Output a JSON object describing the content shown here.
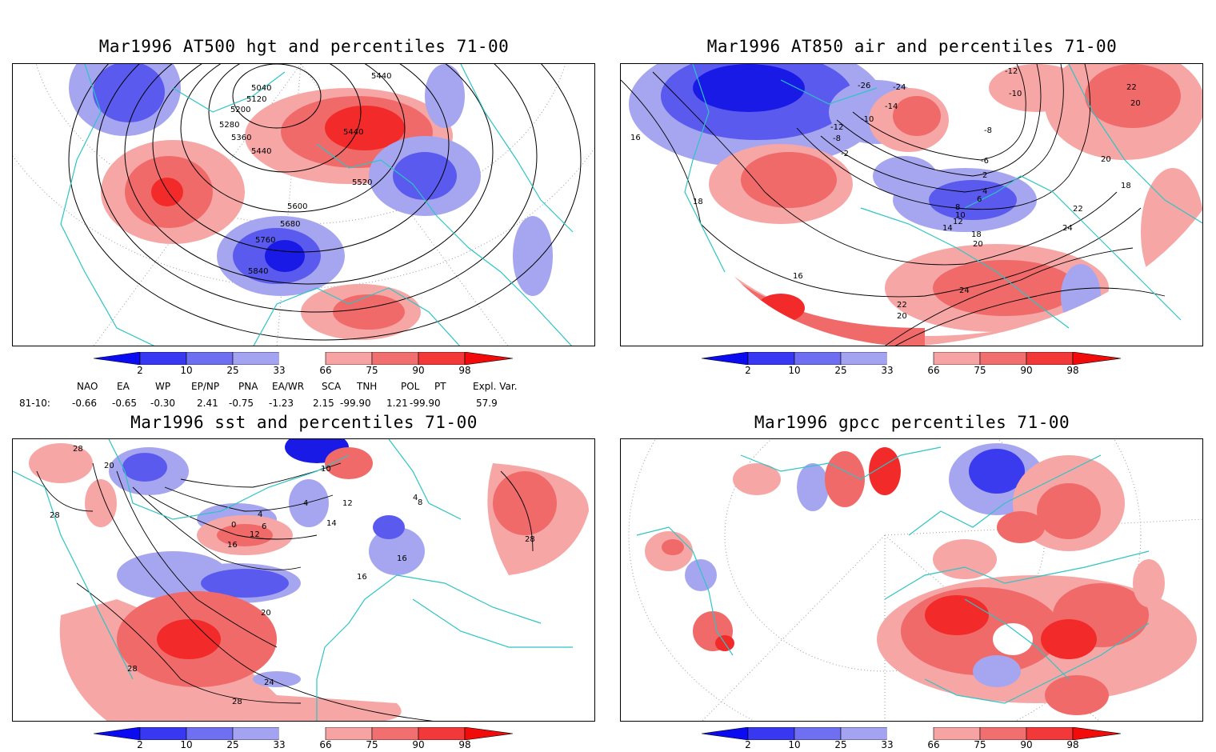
{
  "panels": [
    {
      "id": "p1",
      "title": "Mar1996 AT500 hgt and percentiles 71-00",
      "contour_labels": [
        "5040",
        "5120",
        "5200",
        "5280",
        "5360",
        "5440",
        "5440",
        "5440",
        "5520",
        "5600",
        "5680",
        "5760",
        "5840"
      ]
    },
    {
      "id": "p2",
      "title": "Mar1996 AT850 air and percentiles 71-00",
      "contour_labels": [
        "-12",
        "-10",
        "-26",
        "-24",
        "-14",
        "-10",
        "-12",
        "-8",
        "-6",
        "-8",
        "-2",
        "2",
        "4",
        "16",
        "18",
        "22",
        "20",
        "20",
        "18",
        "22",
        "6",
        "8",
        "10",
        "12",
        "14",
        "18",
        "20",
        "24",
        "16",
        "24",
        "22",
        "20"
      ]
    },
    {
      "id": "p3",
      "title": "Mar1996 sst and percentiles 71-00",
      "contour_labels": [
        "28",
        "20",
        "28",
        "10",
        "4",
        "4",
        "0",
        "6",
        "12",
        "16",
        "12",
        "14",
        "16",
        "16",
        "4",
        "8",
        "28",
        "20",
        "24",
        "28",
        "28"
      ]
    },
    {
      "id": "p4",
      "title": "Mar1996 gpcc percentiles 71-00",
      "contour_labels": []
    }
  ],
  "colorbar": {
    "labels": [
      "2",
      "10",
      "25",
      "33",
      "66",
      "75",
      "90",
      "98"
    ],
    "colors": [
      "#0b0bf2",
      "#3838f2",
      "#6f6ff2",
      "#a3a3f2",
      "#ffffff",
      "#f7a3a3",
      "#f26f6f",
      "#f23838",
      "#f20b0b"
    ]
  },
  "indices": {
    "header": [
      "NAO",
      "EA",
      "WP",
      "EP/NP",
      "PNA",
      "EA/WR",
      "SCA",
      "TNH",
      "POL",
      "PT",
      "Expl. Var."
    ],
    "row_label": "81-10:",
    "values": [
      "-0.66",
      "-0.65",
      "-0.30",
      "2.41",
      "-0.75",
      "-1.23",
      "2.15",
      "-99.90",
      "1.21",
      "-99.90",
      "57.9"
    ]
  },
  "colors": {
    "coast": "#2ec4c4",
    "blue_strong": "#1a1ae6",
    "blue_mid": "#5a5aef",
    "blue_light": "#a6a6f0",
    "red_light": "#f7a6a6",
    "red_mid": "#f06a6a",
    "red_strong": "#f22a2a"
  }
}
